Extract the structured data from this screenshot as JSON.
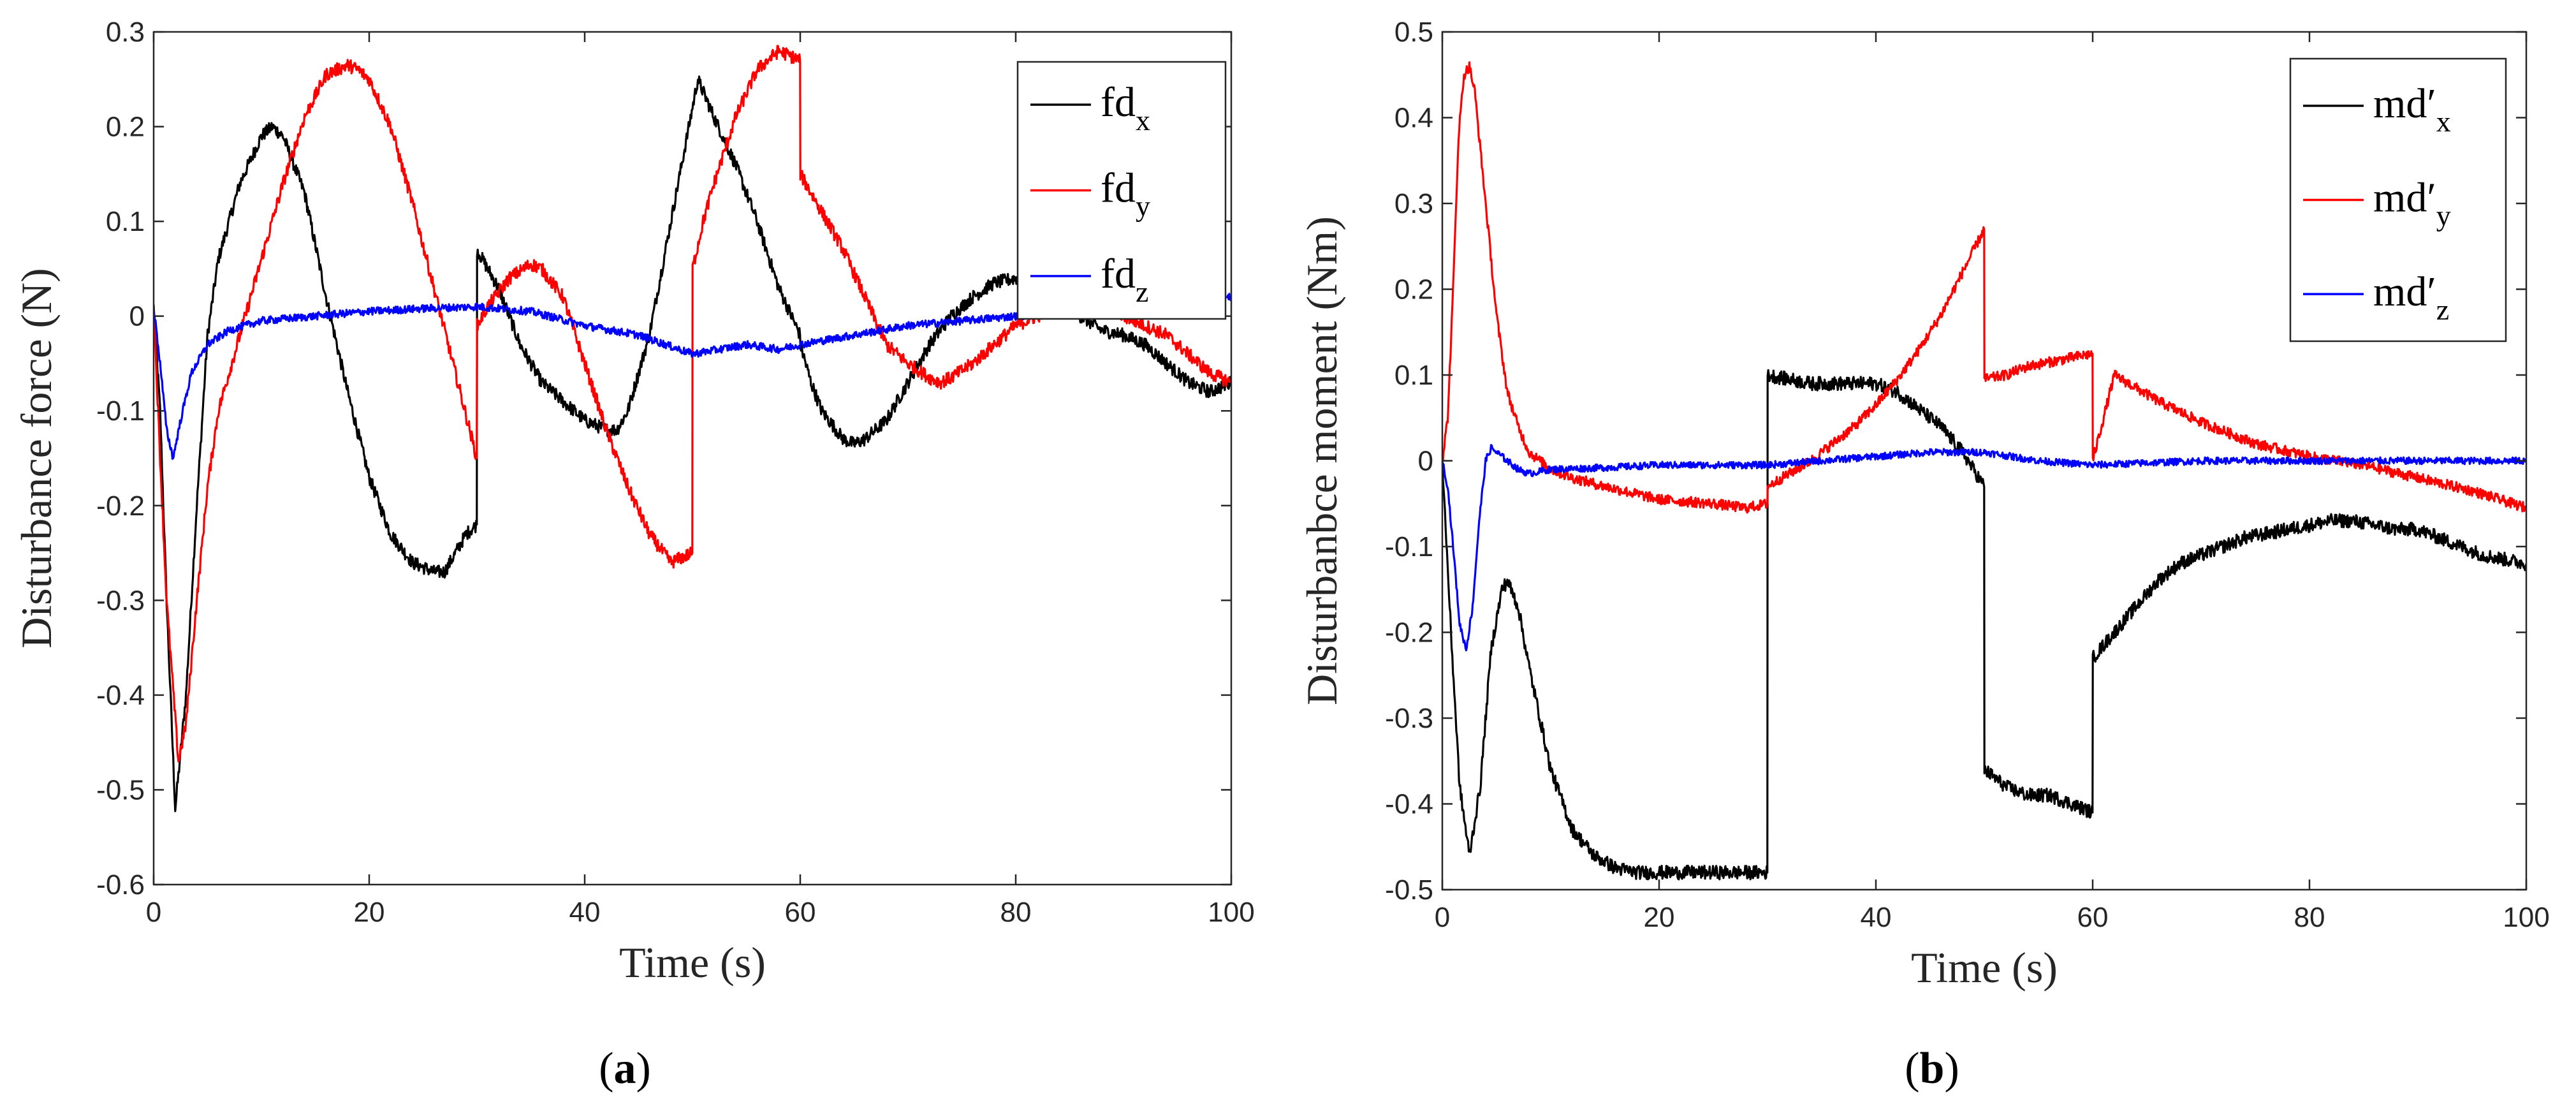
{
  "chart_data": [
    {
      "type": "line",
      "panel_label": "(a)",
      "panel_letter": "a",
      "xlabel": "Time (s)",
      "ylabel": "Disturbance force (N)",
      "xlim": [
        0,
        100
      ],
      "ylim": [
        -0.6,
        0.3
      ],
      "xticks": [
        0,
        20,
        40,
        60,
        80,
        100
      ],
      "yticks": [
        -0.6,
        -0.5,
        -0.4,
        -0.3,
        -0.2,
        -0.1,
        0,
        0.1,
        0.2,
        0.3
      ],
      "xtick_labels": [
        "0",
        "20",
        "40",
        "60",
        "80",
        "100"
      ],
      "ytick_labels": [
        "-0.6",
        "-0.5",
        "-0.4",
        "-0.3",
        "-0.2",
        "-0.1",
        "0",
        "0.1",
        "0.2",
        "0.3"
      ],
      "legend_position": "top-right",
      "series": [
        {
          "name": "fd",
          "sub": "x",
          "color": "#000000",
          "noise": 0.007,
          "x": [
            0,
            0.6,
            1.2,
            2,
            3,
            4,
            5,
            6,
            8,
            10,
            11,
            12,
            14,
            16,
            18,
            20,
            22,
            24,
            26,
            27,
            28,
            29,
            29.99,
            30.01,
            31,
            32,
            34,
            36,
            38,
            40,
            42,
            43,
            44,
            46,
            48,
            50,
            50.5,
            52,
            54,
            56,
            58,
            59.99,
            60.01,
            61,
            62,
            64,
            65,
            66,
            68,
            70,
            72,
            74,
            76,
            78,
            80,
            82,
            84,
            86,
            88,
            90,
            92,
            94,
            96,
            98,
            100
          ],
          "y": [
            0.01,
            -0.1,
            -0.3,
            -0.52,
            -0.4,
            -0.2,
            -0.02,
            0.06,
            0.14,
            0.19,
            0.2,
            0.19,
            0.13,
            0.02,
            -0.08,
            -0.17,
            -0.23,
            -0.26,
            -0.27,
            -0.27,
            -0.25,
            -0.23,
            -0.22,
            0.07,
            0.05,
            0.03,
            -0.03,
            -0.07,
            -0.09,
            -0.11,
            -0.12,
            -0.12,
            -0.1,
            -0.02,
            0.1,
            0.22,
            0.25,
            0.21,
            0.16,
            0.1,
            0.03,
            -0.02,
            -0.03,
            -0.07,
            -0.1,
            -0.13,
            -0.135,
            -0.13,
            -0.11,
            -0.07,
            -0.03,
            0.0,
            0.02,
            0.035,
            0.04,
            0.03,
            0.015,
            0.0,
            -0.015,
            -0.02,
            -0.03,
            -0.05,
            -0.07,
            -0.08,
            -0.07
          ]
        },
        {
          "name": "fd",
          "sub": "y",
          "color": "#ff0000",
          "noise": 0.007,
          "x": [
            0,
            0.6,
            1.2,
            2.3,
            3,
            4,
            5,
            6,
            8,
            10,
            12,
            14,
            16,
            18,
            19,
            20,
            22,
            24,
            26,
            28,
            29.99,
            30.01,
            31,
            33,
            35,
            36,
            38,
            40,
            42,
            44,
            46,
            48,
            49.99,
            50.01,
            51,
            52,
            54,
            56,
            58,
            59.99,
            60.01,
            62,
            64,
            66,
            68,
            70,
            72,
            73,
            74,
            76,
            78,
            80,
            82,
            84,
            86,
            88,
            90,
            92,
            94,
            96,
            98,
            100
          ],
          "y": [
            0.01,
            -0.15,
            -0.3,
            -0.47,
            -0.43,
            -0.3,
            -0.18,
            -0.1,
            -0.02,
            0.06,
            0.14,
            0.21,
            0.255,
            0.265,
            0.26,
            0.25,
            0.2,
            0.12,
            0.03,
            -0.06,
            -0.15,
            -0.01,
            0.01,
            0.04,
            0.055,
            0.05,
            0.02,
            -0.05,
            -0.12,
            -0.18,
            -0.23,
            -0.26,
            -0.25,
            0.05,
            0.1,
            0.14,
            0.21,
            0.26,
            0.28,
            0.27,
            0.15,
            0.11,
            0.07,
            0.02,
            -0.03,
            -0.05,
            -0.065,
            -0.07,
            -0.065,
            -0.05,
            -0.03,
            -0.01,
            0.0,
            0.01,
            0.015,
            0.01,
            0.0,
            -0.01,
            -0.02,
            -0.04,
            -0.06,
            -0.07
          ]
        },
        {
          "name": "fd",
          "sub": "z",
          "color": "#0000ff",
          "noise": 0.004,
          "x": [
            0,
            0.6,
            1.2,
            1.8,
            2.5,
            3.5,
            5,
            7,
            10,
            15,
            20,
            25,
            30,
            35,
            40,
            45,
            50,
            55,
            58,
            60,
            65,
            70,
            75,
            80,
            85,
            90,
            95,
            100
          ],
          "y": [
            0.01,
            -0.05,
            -0.12,
            -0.15,
            -0.11,
            -0.06,
            -0.03,
            -0.015,
            -0.005,
            0.0,
            0.005,
            0.008,
            0.01,
            0.005,
            -0.01,
            -0.02,
            -0.04,
            -0.03,
            -0.035,
            -0.03,
            -0.02,
            -0.01,
            -0.005,
            0.0,
            0.005,
            0.008,
            0.012,
            0.02
          ]
        }
      ]
    },
    {
      "type": "line",
      "panel_label": "(b)",
      "panel_letter": "b",
      "xlabel": "Time (s)",
      "ylabel": "Disturbanbce moment (Nm)",
      "xlim": [
        0,
        100
      ],
      "ylim": [
        -0.5,
        0.5
      ],
      "xticks": [
        0,
        20,
        40,
        60,
        80,
        100
      ],
      "yticks": [
        -0.5,
        -0.4,
        -0.3,
        -0.2,
        -0.1,
        0,
        0.1,
        0.2,
        0.3,
        0.4,
        0.5
      ],
      "xtick_labels": [
        "0",
        "20",
        "40",
        "60",
        "80",
        "100"
      ],
      "ytick_labels": [
        "-0.5",
        "-0.4",
        "-0.3",
        "-0.2",
        "-0.1",
        "0",
        "0.1",
        "0.2",
        "0.3",
        "0.4",
        "0.5"
      ],
      "legend_position": "top-right",
      "series": [
        {
          "name": "md′",
          "sub": "x",
          "color": "#000000",
          "noise": 0.008,
          "x": [
            0,
            0.8,
            1.6,
            2.5,
            3.5,
            4.5,
            5.5,
            6,
            7,
            8,
            10,
            12,
            14,
            16,
            18,
            20,
            22,
            24,
            26,
            28,
            29.99,
            30.01,
            32,
            34,
            36,
            38,
            40,
            42,
            44,
            46,
            48,
            49.99,
            50.01,
            51,
            52,
            54,
            56,
            58,
            59.99,
            60.01,
            62,
            64,
            66,
            68,
            70,
            72,
            74,
            76,
            78,
            80,
            82,
            84,
            86,
            88,
            90,
            92,
            94,
            96,
            98,
            100
          ],
          "y": [
            0.0,
            -0.2,
            -0.38,
            -0.46,
            -0.38,
            -0.22,
            -0.15,
            -0.14,
            -0.17,
            -0.24,
            -0.36,
            -0.43,
            -0.46,
            -0.475,
            -0.48,
            -0.48,
            -0.48,
            -0.48,
            -0.48,
            -0.48,
            -0.48,
            0.1,
            0.095,
            0.09,
            0.09,
            0.09,
            0.09,
            0.08,
            0.06,
            0.04,
            0.01,
            -0.03,
            -0.36,
            -0.37,
            -0.38,
            -0.39,
            -0.39,
            -0.4,
            -0.41,
            -0.23,
            -0.2,
            -0.17,
            -0.14,
            -0.12,
            -0.11,
            -0.1,
            -0.09,
            -0.085,
            -0.08,
            -0.075,
            -0.07,
            -0.07,
            -0.075,
            -0.08,
            -0.08,
            -0.09,
            -0.1,
            -0.11,
            -0.115,
            -0.12
          ]
        },
        {
          "name": "md′",
          "sub": "y",
          "color": "#ff0000",
          "noise": 0.006,
          "x": [
            0,
            0.5,
            1,
            1.5,
            2,
            2.5,
            3,
            4,
            5,
            6,
            7,
            8,
            10,
            12,
            15,
            20,
            25,
            28,
            29.99,
            30.01,
            32,
            34,
            36,
            38,
            40,
            42,
            44,
            46,
            48,
            49.99,
            50.01,
            52,
            54,
            56,
            58,
            59.99,
            60.01,
            62,
            64,
            66,
            70,
            75,
            80,
            85,
            90,
            95,
            100
          ],
          "y": [
            0.0,
            0.05,
            0.2,
            0.38,
            0.45,
            0.46,
            0.43,
            0.3,
            0.17,
            0.08,
            0.04,
            0.01,
            -0.01,
            -0.02,
            -0.03,
            -0.045,
            -0.05,
            -0.055,
            -0.05,
            -0.03,
            -0.015,
            0.0,
            0.02,
            0.04,
            0.065,
            0.095,
            0.13,
            0.17,
            0.22,
            0.27,
            0.095,
            0.1,
            0.11,
            0.115,
            0.12,
            0.125,
            0.0,
            0.1,
            0.085,
            0.07,
            0.045,
            0.02,
            0.005,
            -0.005,
            -0.02,
            -0.035,
            -0.055
          ]
        },
        {
          "name": "md′",
          "sub": "z",
          "color": "#0000ff",
          "noise": 0.004,
          "x": [
            0,
            0.5,
            1,
            1.6,
            2.2,
            2.8,
            3.4,
            4,
            4.5,
            5,
            6,
            7,
            8,
            10,
            15,
            20,
            25,
            30,
            35,
            40,
            45,
            50,
            55,
            60,
            70,
            80,
            90,
            100
          ],
          "y": [
            0.0,
            -0.03,
            -0.1,
            -0.19,
            -0.22,
            -0.17,
            -0.07,
            0.0,
            0.015,
            0.01,
            0.0,
            -0.01,
            -0.015,
            -0.01,
            -0.008,
            -0.005,
            -0.005,
            -0.005,
            0.0,
            0.005,
            0.01,
            0.01,
            0.0,
            -0.005,
            0.0,
            0.0,
            0.0,
            0.0
          ]
        }
      ]
    }
  ]
}
